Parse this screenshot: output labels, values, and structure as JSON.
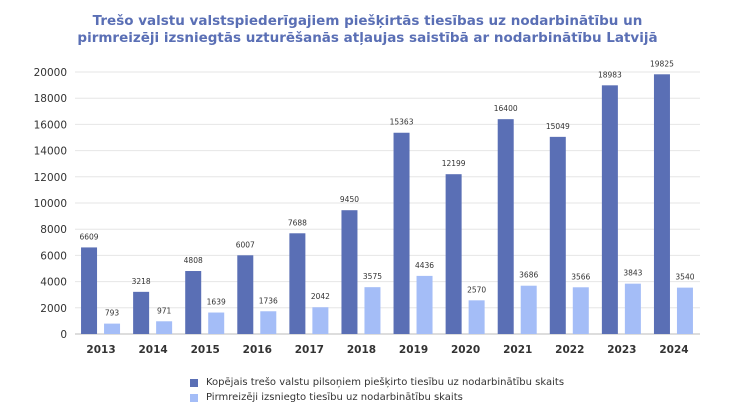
{
  "chart_data": {
    "type": "bar",
    "title": [
      "Trešo valstu valstspiederīgajiem piešķirtās tiesības uz nodarbinātību un",
      "pirmreizēji izsniegtās uzturēšanās atļaujas saistībā ar nodarbinātību Latvijā"
    ],
    "categories": [
      "2013",
      "2014",
      "2015",
      "2016",
      "2017",
      "2018",
      "2019",
      "2020",
      "2021",
      "2022",
      "2023",
      "2024"
    ],
    "series": [
      {
        "name": "Kopējais trešo valstu pilsoņiem piešķirto tiesību uz nodarbinātību skaits",
        "color": "#5a6fb5",
        "values": [
          6609,
          3218,
          4808,
          6007,
          7688,
          9450,
          15363,
          12199,
          16400,
          15049,
          18983,
          19825
        ]
      },
      {
        "name": "Pirmreizēji izsniegto tiesību uz nodarbinātību skaits",
        "color": "#a4bdf7",
        "values": [
          793,
          971,
          1639,
          1736,
          2042,
          3575,
          4436,
          2570,
          3686,
          3566,
          3843,
          3540
        ]
      }
    ],
    "ylim": [
      0,
      20000
    ],
    "yticks": [
      "0",
      "2000",
      "4000",
      "6000",
      "8000",
      "10000",
      "12000",
      "14000",
      "16000",
      "18000",
      "20000"
    ],
    "grid": true,
    "legend": "bottom"
  }
}
